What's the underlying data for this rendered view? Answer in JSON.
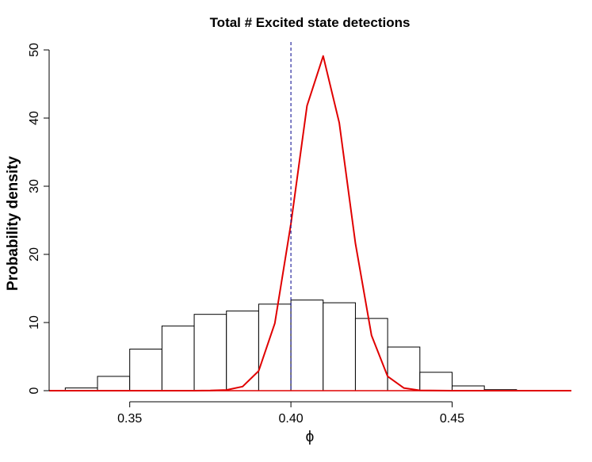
{
  "chart_data": {
    "type": "histogram",
    "title": "Total #  Excited state detections",
    "xlabel": "ϕ",
    "ylabel": "Probability density",
    "xlim": [
      0.325,
      0.487
    ],
    "ylim": [
      0,
      50
    ],
    "x_ticks": [
      0.35,
      0.4,
      0.45
    ],
    "x_tick_labels": [
      "0.35",
      "0.40",
      "0.45"
    ],
    "y_ticks": [
      0,
      10,
      20,
      30,
      40,
      50
    ],
    "y_tick_labels": [
      "0",
      "10",
      "20",
      "30",
      "40",
      "50"
    ],
    "bins": [
      {
        "x0": 0.33,
        "x1": 0.34,
        "density": 0.4
      },
      {
        "x0": 0.34,
        "x1": 0.35,
        "density": 2.1
      },
      {
        "x0": 0.35,
        "x1": 0.36,
        "density": 6.1
      },
      {
        "x0": 0.36,
        "x1": 0.37,
        "density": 9.5
      },
      {
        "x0": 0.37,
        "x1": 0.38,
        "density": 11.2
      },
      {
        "x0": 0.38,
        "x1": 0.39,
        "density": 11.7
      },
      {
        "x0": 0.39,
        "x1": 0.4,
        "density": 12.7
      },
      {
        "x0": 0.4,
        "x1": 0.41,
        "density": 13.3
      },
      {
        "x0": 0.41,
        "x1": 0.42,
        "density": 12.9
      },
      {
        "x0": 0.42,
        "x1": 0.43,
        "density": 10.6
      },
      {
        "x0": 0.43,
        "x1": 0.44,
        "density": 6.4
      },
      {
        "x0": 0.44,
        "x1": 0.45,
        "density": 2.7
      },
      {
        "x0": 0.45,
        "x1": 0.46,
        "density": 0.7
      },
      {
        "x0": 0.46,
        "x1": 0.47,
        "density": 0.15
      }
    ],
    "curve": {
      "color": "#e00000",
      "x": [
        0.325,
        0.35,
        0.36,
        0.37,
        0.375,
        0.38,
        0.385,
        0.39,
        0.395,
        0.4,
        0.405,
        0.41,
        0.415,
        0.42,
        0.425,
        0.43,
        0.435,
        0.44,
        0.45,
        0.487
      ],
      "y": [
        0,
        0,
        0,
        0,
        0.02,
        0.1,
        0.6,
        2.9,
        9.9,
        24.5,
        41.8,
        49.1,
        39.3,
        21.6,
        8.1,
        2.1,
        0.4,
        0.05,
        0,
        0
      ]
    },
    "vline": {
      "x": 0.4,
      "color": "#00008b",
      "style": "dashed"
    },
    "histogram_fill": "#ffffff",
    "histogram_stroke": "#000000",
    "grid": false,
    "legend": "none"
  }
}
